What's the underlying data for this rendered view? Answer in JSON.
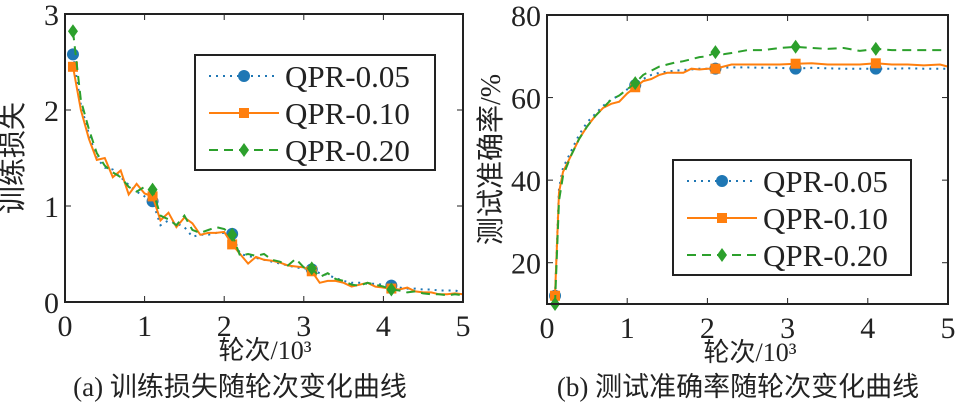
{
  "colors": {
    "QPR-0.05": "#1f77b4",
    "QPR-0.10": "#ff7f0e",
    "QPR-0.20": "#2ca02c"
  },
  "chart_data": [
    {
      "type": "line",
      "caption": "(a) 训练损失随轮次变化曲线",
      "xlabel": "轮次/10³",
      "ylabel": "训练损失",
      "xlim": [
        0,
        5
      ],
      "ylim": [
        0,
        3
      ],
      "xticks": [
        "0",
        "1",
        "2",
        "3",
        "4",
        "5"
      ],
      "yticks": [
        "0",
        "1",
        "2",
        "3"
      ],
      "legend_position": "top-right",
      "marker_x": [
        0.1,
        1.1,
        2.1,
        3.1,
        4.1
      ],
      "x": [
        0.1,
        0.2,
        0.3,
        0.4,
        0.5,
        0.6,
        0.7,
        0.8,
        0.9,
        1.0,
        1.1,
        1.2,
        1.3,
        1.4,
        1.5,
        1.6,
        1.7,
        1.8,
        1.9,
        2.0,
        2.1,
        2.2,
        2.3,
        2.4,
        2.5,
        2.6,
        2.7,
        2.8,
        2.9,
        3.0,
        3.1,
        3.2,
        3.3,
        3.4,
        3.5,
        3.6,
        3.7,
        3.8,
        3.9,
        4.0,
        4.1,
        4.2,
        4.3,
        4.4,
        4.5,
        4.6,
        4.7,
        4.8,
        4.9,
        5.0
      ],
      "series": [
        {
          "name": "QPR-0.05",
          "style": "dotted",
          "marker": "circle",
          "values": [
            2.58,
            2.05,
            1.75,
            1.5,
            1.4,
            1.38,
            1.3,
            1.22,
            1.15,
            1.1,
            1.05,
            0.8,
            0.85,
            0.82,
            0.78,
            0.68,
            0.7,
            0.7,
            0.72,
            0.72,
            0.71,
            0.5,
            0.48,
            0.46,
            0.44,
            0.42,
            0.4,
            0.38,
            0.36,
            0.35,
            0.34,
            0.3,
            0.28,
            0.25,
            0.22,
            0.2,
            0.2,
            0.19,
            0.19,
            0.18,
            0.17,
            0.15,
            0.14,
            0.14,
            0.13,
            0.13,
            0.12,
            0.12,
            0.12,
            0.1
          ]
        },
        {
          "name": "QPR-0.10",
          "style": "solid",
          "marker": "square",
          "values": [
            2.45,
            2.0,
            1.7,
            1.48,
            1.5,
            1.3,
            1.37,
            1.12,
            1.23,
            1.13,
            1.1,
            0.85,
            0.93,
            0.78,
            0.88,
            0.82,
            0.7,
            0.72,
            0.72,
            0.73,
            0.6,
            0.5,
            0.4,
            0.47,
            0.44,
            0.43,
            0.41,
            0.38,
            0.37,
            0.36,
            0.32,
            0.2,
            0.22,
            0.22,
            0.2,
            0.16,
            0.18,
            0.2,
            0.16,
            0.15,
            0.14,
            0.13,
            0.15,
            0.11,
            0.1,
            0.1,
            0.08,
            0.08,
            0.09,
            0.08
          ]
        },
        {
          "name": "QPR-0.20",
          "style": "dashed",
          "marker": "diamond",
          "values": [
            2.82,
            2.1,
            1.8,
            1.55,
            1.42,
            1.35,
            1.3,
            1.2,
            1.15,
            1.2,
            1.17,
            0.9,
            0.86,
            0.8,
            0.9,
            0.75,
            0.72,
            0.75,
            0.78,
            0.76,
            0.7,
            0.48,
            0.5,
            0.48,
            0.5,
            0.44,
            0.42,
            0.38,
            0.45,
            0.36,
            0.35,
            0.26,
            0.3,
            0.24,
            0.22,
            0.18,
            0.17,
            0.2,
            0.18,
            0.16,
            0.13,
            0.12,
            0.1,
            0.11,
            0.09,
            0.08,
            0.08,
            0.07,
            0.08,
            0.07
          ]
        }
      ]
    },
    {
      "type": "line",
      "caption": "(b) 测试准确率随轮次变化曲线",
      "xlabel": "轮次/10³",
      "ylabel": "测试准确率/%",
      "xlim": [
        0,
        5
      ],
      "ylim": [
        10,
        80
      ],
      "xticks": [
        "0",
        "1",
        "2",
        "3",
        "4",
        "5"
      ],
      "yticks": [
        "20",
        "40",
        "60",
        "80"
      ],
      "legend_position": "bottom-right",
      "marker_x": [
        0.1,
        1.1,
        2.1,
        3.1,
        4.1
      ],
      "x": [
        0.1,
        0.15,
        0.2,
        0.3,
        0.4,
        0.5,
        0.6,
        0.7,
        0.8,
        0.9,
        1.0,
        1.1,
        1.2,
        1.3,
        1.4,
        1.5,
        1.6,
        1.7,
        1.8,
        1.9,
        2.0,
        2.1,
        2.2,
        2.3,
        2.5,
        2.7,
        2.9,
        3.1,
        3.3,
        3.5,
        3.7,
        3.9,
        4.1,
        4.3,
        4.5,
        4.7,
        4.9,
        5.0
      ],
      "series": [
        {
          "name": "QPR-0.05",
          "style": "dotted",
          "marker": "circle",
          "values": [
            12,
            38,
            43,
            47,
            51,
            54,
            56,
            58,
            59.5,
            60.5,
            62,
            63,
            64.5,
            65.5,
            66,
            66.3,
            66.5,
            66.7,
            66.8,
            67,
            67,
            67,
            67.2,
            67.3,
            67.3,
            67.2,
            67.2,
            67,
            67.2,
            67.1,
            67,
            67,
            67,
            67,
            67.1,
            67,
            67,
            67
          ]
        },
        {
          "name": "QPR-0.10",
          "style": "solid",
          "marker": "square",
          "values": [
            12,
            37,
            42,
            46,
            50,
            53,
            55.5,
            57.5,
            58.5,
            59,
            61,
            62.5,
            64,
            64.5,
            65.5,
            66,
            66,
            66,
            67,
            66.8,
            67,
            67,
            67.5,
            68,
            68,
            68,
            68,
            68.2,
            68.3,
            68,
            68,
            68,
            68.3,
            68,
            68,
            67.8,
            68,
            67.5
          ]
        },
        {
          "name": "QPR-0.20",
          "style": "dashed",
          "marker": "diamond",
          "values": [
            10,
            35,
            41,
            46,
            50,
            53,
            55.5,
            57.5,
            59.5,
            60.5,
            62,
            63.5,
            65.5,
            66.5,
            67.5,
            68,
            68.5,
            68.8,
            69.3,
            69.8,
            70,
            71,
            70.5,
            70.8,
            71.5,
            71.5,
            72,
            72.3,
            72,
            71.8,
            72,
            71.3,
            71.8,
            71.5,
            71.5,
            71.5,
            71.5,
            71.5
          ]
        }
      ]
    }
  ]
}
